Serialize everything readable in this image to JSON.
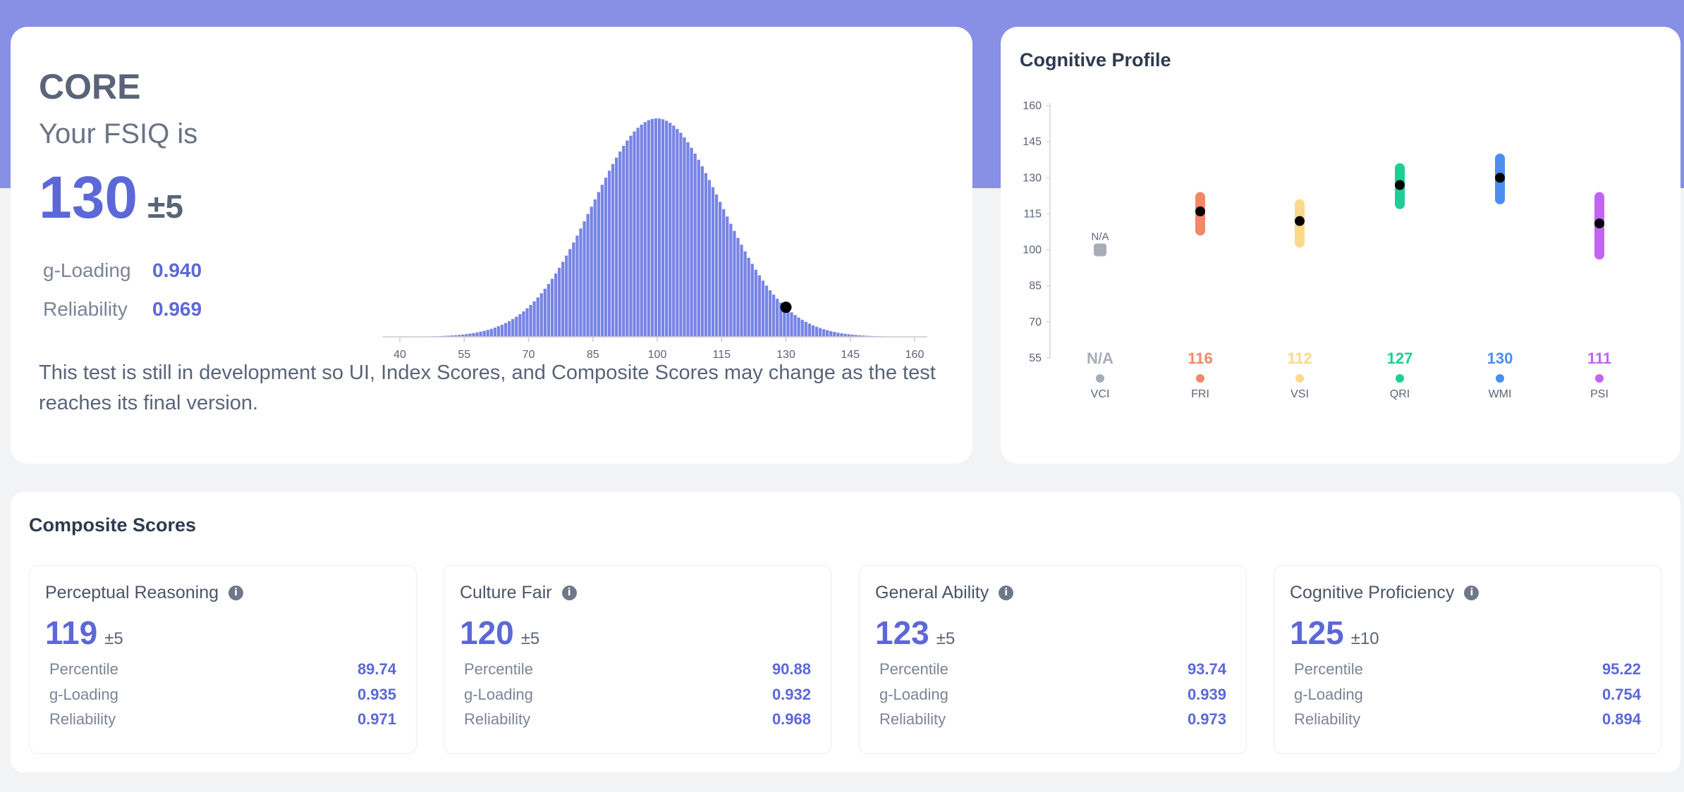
{
  "core": {
    "test_name": "CORE",
    "fsiq_label": "Your FSIQ is",
    "fsiq_value": "130",
    "fsiq_margin": "±5",
    "g_loading_label": "g-Loading",
    "g_loading_value": "0.940",
    "reliability_label": "Reliability",
    "reliability_value": "0.969",
    "dev_note": "This test is still in development so UI, Index Scores, and Composite Scores may change as the test reaches its final version."
  },
  "distribution": {
    "mean": 100,
    "sd": 15,
    "marker": 130,
    "x_ticks": [
      "40",
      "55",
      "70",
      "85",
      "100",
      "115",
      "130",
      "145",
      "160"
    ],
    "bar_color": "#7784e6",
    "marker_color": "#000000"
  },
  "profile": {
    "title": "Cognitive Profile",
    "y_ticks": [
      "55",
      "70",
      "85",
      "100",
      "115",
      "130",
      "145",
      "160"
    ],
    "na_label": "N/A",
    "indices": [
      {
        "code": "VCI",
        "score_label": "N/A",
        "score": null,
        "color": "#a7adb8"
      },
      {
        "code": "FRI",
        "score_label": "116",
        "score": 116,
        "low": 108,
        "high": 122,
        "color": "#f0886a"
      },
      {
        "code": "VSI",
        "score_label": "112",
        "score": 112,
        "low": 103,
        "high": 119,
        "color": "#fcd98a"
      },
      {
        "code": "QRI",
        "score_label": "127",
        "score": 127,
        "low": 119,
        "high": 134,
        "color": "#1ccf94"
      },
      {
        "code": "WMI",
        "score_label": "130",
        "score": 130,
        "low": 121,
        "high": 138,
        "color": "#4c8ef0"
      },
      {
        "code": "PSI",
        "score_label": "111",
        "score": 111,
        "low": 98,
        "high": 122,
        "color": "#c264f2"
      }
    ]
  },
  "composite": {
    "title": "Composite Scores",
    "info_glyph": "i",
    "cards": [
      {
        "name": "Perceptual Reasoning",
        "score": "119",
        "margin": "±5",
        "stats": [
          {
            "label": "Percentile",
            "value": "89.74"
          },
          {
            "label": "g-Loading",
            "value": "0.935"
          },
          {
            "label": "Reliability",
            "value": "0.971"
          }
        ]
      },
      {
        "name": "Culture Fair",
        "score": "120",
        "margin": "±5",
        "stats": [
          {
            "label": "Percentile",
            "value": "90.88"
          },
          {
            "label": "g-Loading",
            "value": "0.932"
          },
          {
            "label": "Reliability",
            "value": "0.968"
          }
        ]
      },
      {
        "name": "General Ability",
        "score": "123",
        "margin": "±5",
        "stats": [
          {
            "label": "Percentile",
            "value": "93.74"
          },
          {
            "label": "g-Loading",
            "value": "0.939"
          },
          {
            "label": "Reliability",
            "value": "0.973"
          }
        ]
      },
      {
        "name": "Cognitive Proficiency",
        "score": "125",
        "margin": "±10",
        "stats": [
          {
            "label": "Percentile",
            "value": "95.22"
          },
          {
            "label": "g-Loading",
            "value": "0.754"
          },
          {
            "label": "Reliability",
            "value": "0.894"
          }
        ]
      }
    ]
  },
  "chart_data": [
    {
      "type": "bar",
      "title": "",
      "xlabel": "",
      "ylabel": "",
      "description_series": "Normal distribution of FSIQ (mean 100, SD 15) with marker at user score",
      "xlim": [
        35,
        165
      ],
      "x_ticks": [
        40,
        55,
        70,
        85,
        100,
        115,
        130,
        145,
        160
      ],
      "series": [
        {
          "name": "FSIQ distribution",
          "mean": 100,
          "sd": 15
        }
      ],
      "marker": {
        "x": 130
      }
    },
    {
      "type": "scatter",
      "title": "Cognitive Profile",
      "categories": [
        "VCI",
        "FRI",
        "VSI",
        "QRI",
        "WMI",
        "PSI"
      ],
      "values": [
        null,
        116,
        112,
        127,
        130,
        111
      ],
      "ranges": [
        null,
        [
          108,
          122
        ],
        [
          103,
          119
        ],
        [
          119,
          134
        ],
        [
          121,
          138
        ],
        [
          98,
          122
        ]
      ],
      "ylim": [
        55,
        160
      ],
      "y_ticks": [
        55,
        70,
        85,
        100,
        115,
        130,
        145,
        160
      ]
    }
  ]
}
